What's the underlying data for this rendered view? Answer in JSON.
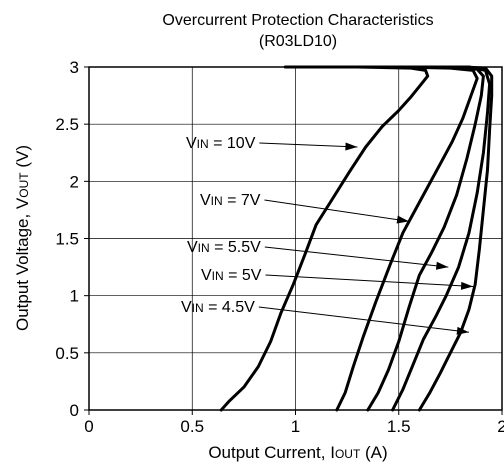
{
  "chart_data": {
    "type": "line",
    "title": "Overcurrent Protection Characteristics",
    "subtitle": "(R03LD10)",
    "xlabel": "Output Current, I",
    "xlabel_sub": "OUT",
    "xlabel_unit": "(A)",
    "ylabel": "Output Voltage,  V",
    "ylabel_sub": "OUT",
    "ylabel_unit": "(V)",
    "xlim": [
      0,
      2
    ],
    "ylim": [
      0,
      3
    ],
    "xticks": [
      0,
      0.5,
      1,
      1.5,
      2
    ],
    "xtick_labels": [
      "0",
      "0.5",
      "1",
      "1.5",
      "2"
    ],
    "yticks": [
      0,
      0.5,
      1,
      1.5,
      2,
      2.5,
      3
    ],
    "ytick_labels": [
      "0",
      "0.5",
      "1",
      "1.5",
      "2",
      "2.5",
      "3"
    ],
    "grid": true,
    "series": [
      {
        "name": "VIN = 10V",
        "label_prefix": "V",
        "label_sub": "IN",
        "label_suffix": " = 10V",
        "points": [
          [
            0.64,
            0.0
          ],
          [
            0.68,
            0.08
          ],
          [
            0.75,
            0.2
          ],
          [
            0.82,
            0.38
          ],
          [
            0.88,
            0.6
          ],
          [
            0.93,
            0.85
          ],
          [
            0.99,
            1.1
          ],
          [
            1.05,
            1.38
          ],
          [
            1.1,
            1.62
          ],
          [
            1.18,
            1.85
          ],
          [
            1.26,
            2.08
          ],
          [
            1.34,
            2.3
          ],
          [
            1.42,
            2.48
          ],
          [
            1.5,
            2.62
          ],
          [
            1.56,
            2.74
          ],
          [
            1.6,
            2.83
          ],
          [
            1.64,
            2.92
          ],
          [
            1.63,
            2.97
          ],
          [
            1.56,
            2.99
          ],
          [
            1.3,
            3.0
          ],
          [
            0.95,
            3.0
          ]
        ],
        "annotation": {
          "x": 1.3,
          "y": 2.3
        }
      },
      {
        "name": "VIN = 7V",
        "label_prefix": "V",
        "label_sub": "IN",
        "label_suffix": " = 7V",
        "points": [
          [
            1.2,
            0.0
          ],
          [
            1.24,
            0.15
          ],
          [
            1.28,
            0.38
          ],
          [
            1.33,
            0.65
          ],
          [
            1.39,
            0.95
          ],
          [
            1.46,
            1.28
          ],
          [
            1.52,
            1.55
          ],
          [
            1.58,
            1.75
          ],
          [
            1.64,
            1.95
          ],
          [
            1.7,
            2.15
          ],
          [
            1.76,
            2.35
          ],
          [
            1.81,
            2.55
          ],
          [
            1.85,
            2.75
          ],
          [
            1.88,
            2.9
          ],
          [
            1.86,
            2.97
          ],
          [
            1.75,
            2.99
          ],
          [
            1.5,
            3.0
          ],
          [
            1.1,
            3.0
          ]
        ],
        "annotation": {
          "x": 1.55,
          "y": 1.65
        }
      },
      {
        "name": "VIN = 5.5V",
        "label_prefix": "V",
        "label_sub": "IN",
        "label_suffix": " = 5.5V",
        "points": [
          [
            1.35,
            0.0
          ],
          [
            1.4,
            0.15
          ],
          [
            1.45,
            0.35
          ],
          [
            1.5,
            0.6
          ],
          [
            1.55,
            0.9
          ],
          [
            1.6,
            1.18
          ],
          [
            1.66,
            1.38
          ],
          [
            1.72,
            1.6
          ],
          [
            1.78,
            1.88
          ],
          [
            1.83,
            2.2
          ],
          [
            1.87,
            2.5
          ],
          [
            1.9,
            2.75
          ],
          [
            1.91,
            2.92
          ],
          [
            1.88,
            2.98
          ],
          [
            1.75,
            3.0
          ],
          [
            1.5,
            3.0
          ]
        ],
        "annotation": {
          "x": 1.74,
          "y": 1.25
        }
      },
      {
        "name": "VIN = 5V",
        "label_prefix": "V",
        "label_sub": "IN",
        "label_suffix": " = 5V",
        "points": [
          [
            1.47,
            0.0
          ],
          [
            1.52,
            0.18
          ],
          [
            1.57,
            0.4
          ],
          [
            1.62,
            0.62
          ],
          [
            1.68,
            0.82
          ],
          [
            1.73,
            1.0
          ],
          [
            1.79,
            1.25
          ],
          [
            1.84,
            1.55
          ],
          [
            1.88,
            1.9
          ],
          [
            1.91,
            2.25
          ],
          [
            1.93,
            2.6
          ],
          [
            1.94,
            2.85
          ],
          [
            1.92,
            2.97
          ],
          [
            1.84,
            3.0
          ],
          [
            1.65,
            3.0
          ]
        ],
        "annotation": {
          "x": 1.86,
          "y": 1.08
        }
      },
      {
        "name": "VIN = 4.5V",
        "label_prefix": "V",
        "label_sub": "IN",
        "label_suffix": " = 4.5V",
        "points": [
          [
            1.6,
            0.0
          ],
          [
            1.65,
            0.15
          ],
          [
            1.7,
            0.32
          ],
          [
            1.75,
            0.5
          ],
          [
            1.8,
            0.68
          ],
          [
            1.84,
            0.88
          ],
          [
            1.87,
            1.1
          ],
          [
            1.89,
            1.4
          ],
          [
            1.91,
            1.75
          ],
          [
            1.93,
            2.1
          ],
          [
            1.94,
            2.45
          ],
          [
            1.95,
            2.75
          ],
          [
            1.95,
            2.92
          ],
          [
            1.92,
            2.99
          ],
          [
            1.82,
            3.0
          ]
        ],
        "annotation": {
          "x": 1.84,
          "y": 0.68
        }
      }
    ]
  }
}
